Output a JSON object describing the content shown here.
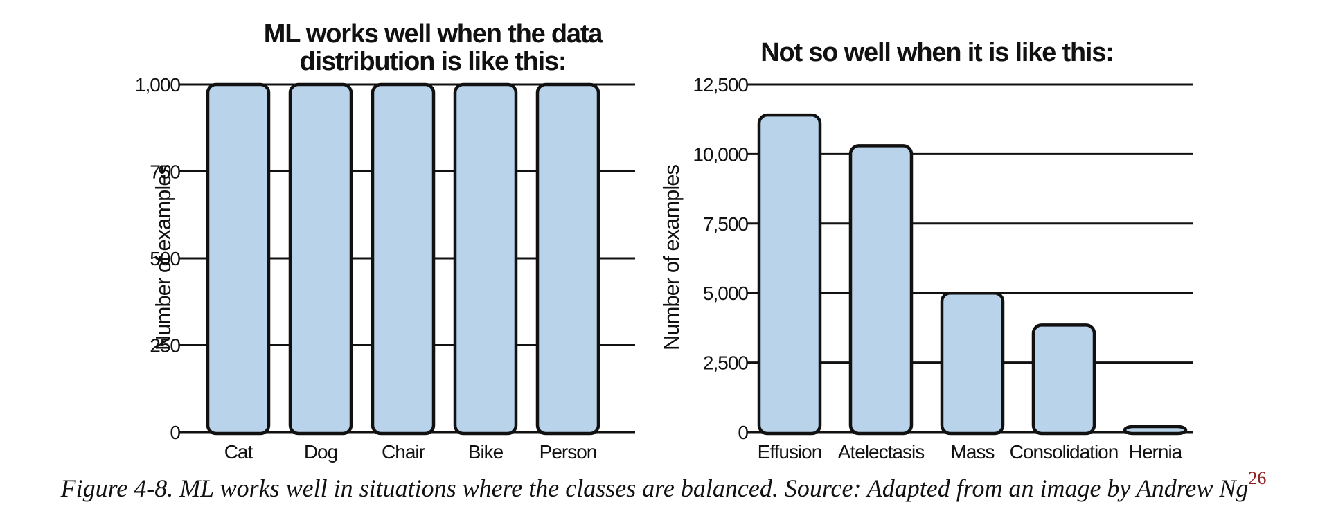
{
  "chart_data": [
    {
      "type": "bar",
      "title_lines": [
        "ML works well when the data",
        "distribution is like this:"
      ],
      "xlabel": "",
      "ylabel": "Number of examples",
      "categories": [
        "Cat",
        "Dog",
        "Chair",
        "Bike",
        "Person"
      ],
      "values": [
        1000,
        1000,
        1000,
        1000,
        1000
      ],
      "ylim": [
        0,
        1000
      ],
      "yticks": [
        0,
        250,
        500,
        750,
        1000
      ],
      "ytick_labels": [
        "0",
        "250",
        "500",
        "750",
        "1,000"
      ],
      "grid": true,
      "bar_color": "#b9d4ea"
    },
    {
      "type": "bar",
      "title_lines": [
        "Not so well when it is like this:"
      ],
      "xlabel": "",
      "ylabel": "Number of examples",
      "categories": [
        "Effusion",
        "Atelectasis",
        "Mass",
        "Consolidation",
        "Hernia"
      ],
      "values": [
        11400,
        10300,
        5000,
        3850,
        200
      ],
      "ylim": [
        0,
        12500
      ],
      "yticks": [
        0,
        2500,
        5000,
        7500,
        10000,
        12500
      ],
      "ytick_labels": [
        "0",
        "2,500",
        "5,000",
        "7,500",
        "10,000",
        "12,500"
      ],
      "grid": true,
      "bar_color": "#b9d4ea"
    }
  ],
  "caption": {
    "text": "Figure 4-8. ML works well in situations where the classes are balanced. Source: Adapted from an image by Andrew Ng",
    "footnote": "26"
  }
}
